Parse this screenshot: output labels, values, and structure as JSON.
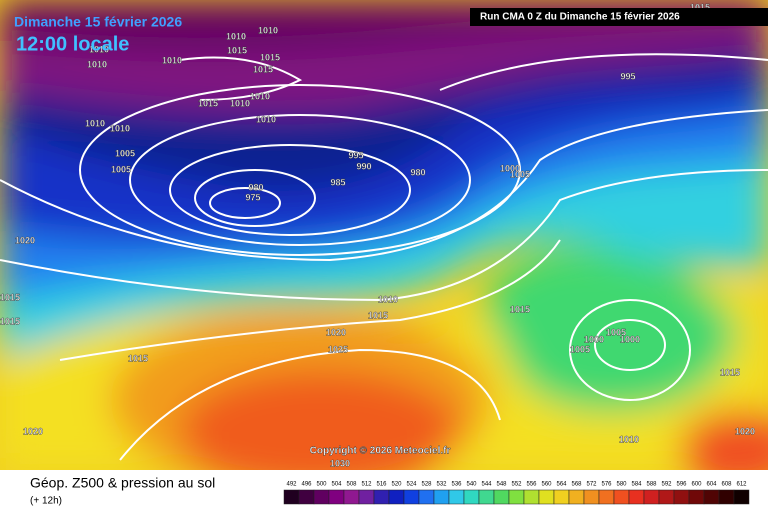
{
  "header": {
    "date": "Dimanche 15 février 2026",
    "time": "12:00 locale",
    "run": "Run CMA 0 Z du Dimanche 15 février 2026"
  },
  "copyright": "Copyright © 2026 Meteociel.fr",
  "footer": {
    "title": "Géop. Z500 & pression au sol",
    "lead": "(+ 12h)"
  },
  "scale": {
    "values": [
      492,
      496,
      500,
      504,
      508,
      512,
      516,
      520,
      524,
      528,
      532,
      536,
      540,
      544,
      548,
      552,
      556,
      560,
      564,
      568,
      572,
      576,
      580,
      584,
      588,
      592,
      596,
      600,
      604,
      608,
      612
    ]
  },
  "isobar_labels": [
    1010,
    1010,
    1015,
    1010,
    1010,
    1010,
    1015,
    1015,
    1015,
    1010,
    1010,
    1010,
    1010,
    1010,
    1005,
    1005,
    995,
    990,
    985,
    980,
    980,
    975,
    1000,
    1005,
    995,
    1015,
    1020,
    1015,
    1015,
    1010,
    1015,
    1020,
    1025,
    1015,
    1015,
    1005,
    1000,
    1000,
    1005,
    1015,
    1010,
    1020,
    1020,
    1030
  ]
}
